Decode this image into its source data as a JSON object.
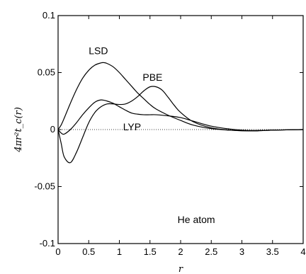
{
  "chart_data": {
    "type": "line",
    "title": "",
    "xlabel": "r",
    "ylabel": "4πr²t_c(r)",
    "xlim": [
      0,
      4
    ],
    "ylim": [
      -0.1,
      0.1
    ],
    "xticks": [
      0,
      0.5,
      1,
      1.5,
      2,
      2.5,
      3,
      3.5,
      4
    ],
    "xtick_labels": [
      "0",
      "0.5",
      "1",
      "1.5",
      "2",
      "2.5",
      "3",
      "3.5",
      "4"
    ],
    "yticks": [
      -0.1,
      -0.05,
      0,
      0.05,
      0.1
    ],
    "ytick_labels": [
      "-0.1",
      "-0.05",
      "0",
      "0.05",
      "0.1"
    ],
    "zero_line": "dotted",
    "grid": false,
    "annotation": "He atom",
    "series": [
      {
        "name": "LSD",
        "x": [
          0,
          0.05,
          0.1,
          0.2,
          0.3,
          0.4,
          0.5,
          0.6,
          0.7,
          0.75,
          0.8,
          0.9,
          1.0,
          1.1,
          1.2,
          1.3,
          1.4,
          1.5,
          1.6,
          1.8,
          2.0,
          2.2,
          2.5,
          2.8,
          3.0,
          3.2,
          3.5,
          4.0
        ],
        "y": [
          0,
          0.004,
          0.01,
          0.023,
          0.035,
          0.045,
          0.052,
          0.0565,
          0.0585,
          0.0587,
          0.058,
          0.055,
          0.05,
          0.044,
          0.038,
          0.032,
          0.027,
          0.022,
          0.018,
          0.0125,
          0.008,
          0.004,
          0.0008,
          -0.0005,
          -0.001,
          -0.001,
          -0.0005,
          0
        ]
      },
      {
        "name": "PBE",
        "x": [
          0,
          0.05,
          0.1,
          0.2,
          0.3,
          0.4,
          0.5,
          0.6,
          0.7,
          0.8,
          0.9,
          1.0,
          1.1,
          1.2,
          1.3,
          1.4,
          1.5,
          1.6,
          1.7,
          1.8,
          1.9,
          2.0,
          2.2,
          2.5,
          2.8,
          3.0,
          3.2,
          3.5,
          4.0
        ],
        "y": [
          0,
          -0.012,
          -0.024,
          -0.029,
          -0.02,
          -0.007,
          0.006,
          0.015,
          0.02,
          0.0225,
          0.0225,
          0.022,
          0.0225,
          0.025,
          0.029,
          0.034,
          0.0375,
          0.0375,
          0.0345,
          0.028,
          0.021,
          0.015,
          0.007,
          0.0015,
          -0.0005,
          -0.001,
          -0.0012,
          -0.0005,
          0
        ]
      },
      {
        "name": "LYP",
        "x": [
          0,
          0.05,
          0.1,
          0.2,
          0.3,
          0.4,
          0.5,
          0.6,
          0.7,
          0.8,
          0.9,
          1.0,
          1.1,
          1.2,
          1.3,
          1.4,
          1.5,
          1.6,
          1.8,
          2.0,
          2.2,
          2.5,
          2.8,
          3.0,
          3.2,
          3.5,
          4.0
        ],
        "y": [
          0,
          -0.003,
          -0.004,
          0.0,
          0.006,
          0.013,
          0.019,
          0.024,
          0.026,
          0.025,
          0.023,
          0.02,
          0.017,
          0.0145,
          0.0135,
          0.013,
          0.013,
          0.013,
          0.012,
          0.0105,
          0.0075,
          0.003,
          0.0005,
          -0.0005,
          -0.0008,
          -0.0005,
          0
        ]
      }
    ],
    "series_labels": [
      {
        "series": "LSD",
        "x": 0.5,
        "y": 0.066
      },
      {
        "series": "PBE",
        "x": 1.38,
        "y": 0.043
      },
      {
        "series": "LYP",
        "x": 1.06,
        "y": -0.0005
      }
    ],
    "annotation_position": {
      "x": 1.95,
      "y": -0.082
    }
  }
}
